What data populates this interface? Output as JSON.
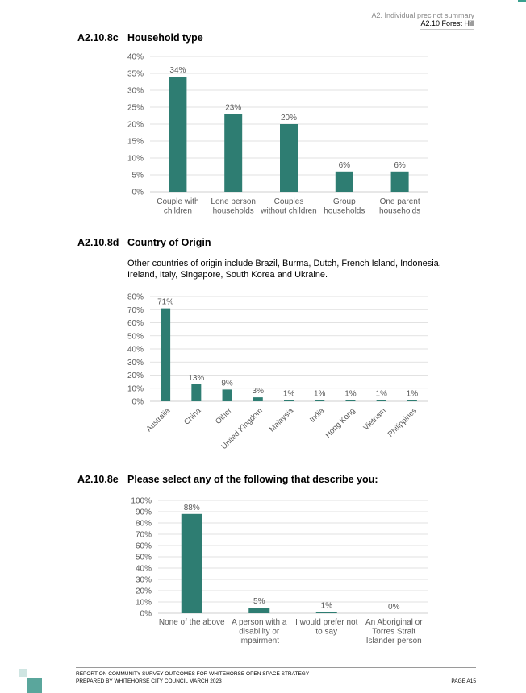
{
  "header": {
    "section": "A2. Individual precinct summary",
    "subsection": "A2.10 Forest Hill"
  },
  "sections": [
    {
      "number": "A2.10.8c",
      "title": "Household type"
    },
    {
      "number": "A2.10.8d",
      "title": "Country of Origin"
    },
    {
      "number": "A2.10.8e",
      "title": "Please select any of the following that describe you:"
    }
  ],
  "origin_note": "Other countries of origin include Brazil, Burma, Dutch, French Island, Indonesia, Ireland, Italy, Singapore, South Korea and Ukraine.",
  "colors": {
    "bar": "#2e7d72",
    "axis_text": "#595959",
    "grid": "#d9d9d9"
  },
  "chart_data": [
    {
      "type": "bar",
      "categories": [
        "Couple with children",
        "Lone person households",
        "Couples without children",
        "Group households",
        "One parent households"
      ],
      "values": [
        34,
        23,
        20,
        6,
        6
      ],
      "data_labels": [
        "34%",
        "23%",
        "20%",
        "6%",
        "6%"
      ],
      "ylim": [
        0,
        40
      ],
      "yticks": [
        "0%",
        "5%",
        "10%",
        "15%",
        "20%",
        "25%",
        "30%",
        "35%",
        "40%"
      ],
      "grid": true
    },
    {
      "type": "bar",
      "categories": [
        "Australia",
        "China",
        "Other",
        "United Kingdom",
        "Malaysia",
        "India",
        "Hong Kong",
        "Vietnam",
        "Philippines"
      ],
      "values": [
        71,
        13,
        9,
        3,
        1,
        1,
        1,
        1,
        1
      ],
      "data_labels": [
        "71%",
        "13%",
        "9%",
        "3%",
        "1%",
        "1%",
        "1%",
        "1%",
        "1%"
      ],
      "ylim": [
        0,
        80
      ],
      "yticks": [
        "0%",
        "10%",
        "20%",
        "30%",
        "40%",
        "50%",
        "60%",
        "70%",
        "80%"
      ],
      "grid": true
    },
    {
      "type": "bar",
      "categories": [
        "None of the above",
        "A person with a disability or impairment",
        "I would prefer not to say",
        "An Aboriginal or Torres Strait Islander person"
      ],
      "values": [
        88,
        5,
        1,
        0
      ],
      "data_labels": [
        "88%",
        "5%",
        "1%",
        "0%"
      ],
      "ylim": [
        0,
        100
      ],
      "yticks": [
        "0%",
        "10%",
        "20%",
        "30%",
        "40%",
        "50%",
        "60%",
        "70%",
        "80%",
        "90%",
        "100%"
      ],
      "grid": true
    }
  ],
  "footer": {
    "line1": "REPORT ON COMMUNITY SURVEY OUTCOMES FOR WHITEHORSE OPEN SPACE STRATEGY",
    "line2": "PREPARED BY WHITEHORSE CITY COUNCIL MARCH 2023",
    "page": "PAGE A15"
  }
}
